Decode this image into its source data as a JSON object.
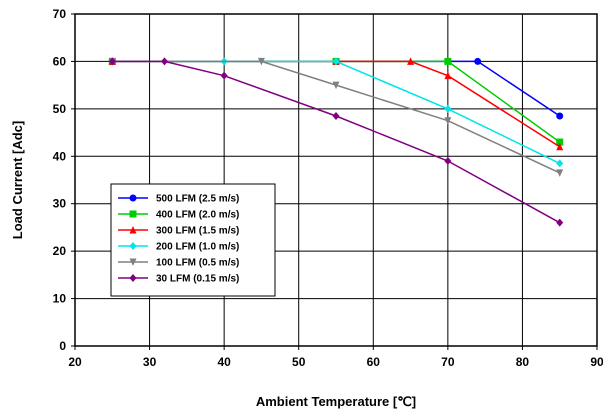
{
  "chart_data": {
    "type": "line",
    "xlabel": "Ambient Temperature [℃]",
    "ylabel": "Load Current  [Adc]",
    "xlim": [
      20,
      90
    ],
    "ylim": [
      0,
      70
    ],
    "xticks": [
      20,
      30,
      40,
      50,
      60,
      70,
      80,
      90
    ],
    "yticks": [
      0,
      10,
      20,
      30,
      40,
      50,
      60,
      70
    ],
    "grid": true,
    "legend_position": "bottom-left",
    "series": [
      {
        "name": "500 LFM (2.5 m/s)",
        "color": "#0000ff",
        "marker": "circle",
        "x": [
          25,
          55,
          74,
          85
        ],
        "y": [
          60,
          60,
          60,
          48.5
        ]
      },
      {
        "name": "400 LFM (2.0 m/s)",
        "color": "#00cc00",
        "marker": "square",
        "x": [
          25,
          55,
          70,
          85
        ],
        "y": [
          60,
          60,
          60,
          43
        ]
      },
      {
        "name": "300 LFM (1.5 m/s)",
        "color": "#ff0000",
        "marker": "triangle",
        "x": [
          25,
          55,
          65,
          70,
          85
        ],
        "y": [
          60,
          60,
          60,
          57,
          42
        ]
      },
      {
        "name": "200 LFM (1.0 m/s)",
        "color": "#00e5e5",
        "marker": "diamond",
        "x": [
          25,
          40,
          55,
          70,
          85
        ],
        "y": [
          60,
          60,
          60,
          50,
          38.5
        ]
      },
      {
        "name": "100 LFM (0.5 m/s)",
        "color": "#808080",
        "marker": "triangle-down",
        "x": [
          25,
          45,
          55,
          70,
          85
        ],
        "y": [
          60,
          60,
          55,
          47.5,
          36.5
        ]
      },
      {
        "name": "  30 LFM (0.15 m/s)",
        "color": "#800080",
        "marker": "diamond",
        "x": [
          25,
          32,
          40,
          55,
          70,
          85
        ],
        "y": [
          60,
          60,
          57,
          48.5,
          39,
          26
        ]
      }
    ]
  }
}
